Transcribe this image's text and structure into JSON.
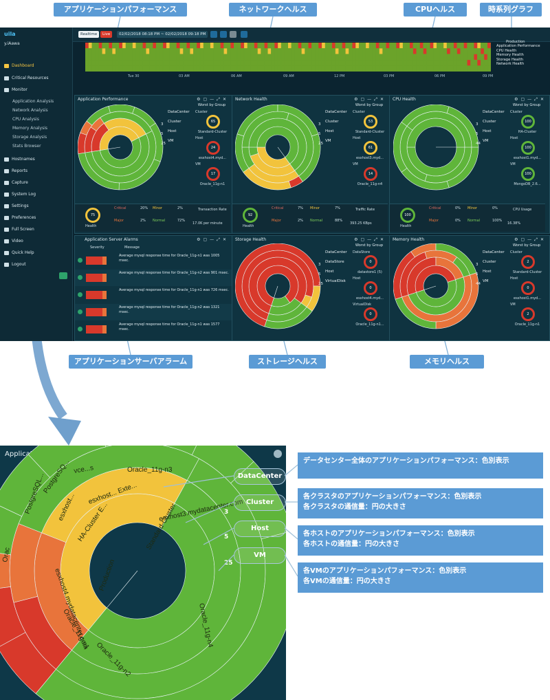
{
  "callouts": {
    "app_perf": "アプリケーションパフォーマンス",
    "network": "ネットワークヘルス",
    "cpu": "CPUヘルス",
    "timeseries": "時系列グラフ",
    "app_alarm": "アプリケーションサーバアラーム",
    "storage": "ストレージヘルス",
    "memory": "メモリヘルス"
  },
  "sidebar": {
    "brand": "uila",
    "user": "y.iAawa",
    "items": [
      "Dashboard",
      "Critical Resources",
      "Monitor",
      "Application Analysis",
      "Network Analysis",
      "CPU Analysis",
      "Memory Analysis",
      "Storage Analysis",
      "Stats Browser",
      "Hostnames",
      "Reports",
      "Capture",
      "System Log",
      "Settings",
      "Preferences",
      "Full Screen",
      "Video",
      "Quick Help",
      "Logout"
    ]
  },
  "topbar": {
    "tab_realtime": "Realtime",
    "tab_live": "Live",
    "range": "02/02/2018 08:18 PM ~ 02/02/2018 09:18 PM"
  },
  "timeline": {
    "ticks": [
      "Tue 30",
      "03 AM",
      "06 AM",
      "09 AM",
      "12 PM",
      "03 PM",
      "06 PM",
      "09 PM"
    ],
    "legend_title": "Production",
    "legend_items": [
      "Application Performance",
      "CPU Health",
      "Memory Health",
      "Storage Health",
      "Network Health"
    ]
  },
  "colors": {
    "green": "#5fb53a",
    "yellow": "#f2c33c",
    "red": "#d8392b",
    "orange": "#e8743b",
    "bg": "#0b2430"
  },
  "rings": {
    "datacenter": "DataCenter",
    "cluster": "Cluster",
    "host": "Host",
    "vm": "VM",
    "datastore": "DataStore",
    "vdisk": "VirtualDisk"
  },
  "ring_counts": {
    "cluster": "3",
    "host": "5",
    "vm": "25",
    "vm_cpu": "44",
    "vm_mem": "44",
    "vm_net": "25",
    "vm_sto": "25"
  },
  "panels": {
    "app": {
      "title": "Application Performance",
      "worst_title": "Worst by Group",
      "groups": [
        {
          "name": "Cluster",
          "value": "65",
          "label": "Standard-Cluster"
        },
        {
          "name": "Host",
          "value": "24",
          "label": "esxhost4.myd..."
        },
        {
          "name": "VM",
          "value": "17",
          "label": "Oracle_11g-n1"
        }
      ],
      "health": "75",
      "health_label": "Health",
      "stats": {
        "critical": "Critical",
        "critical_pct": "20%",
        "minor": "Minor",
        "minor_pct": "2%",
        "major": "Major",
        "major_pct": "2%",
        "normal": "Normal",
        "normal_pct": "72%"
      },
      "metric_name": "Transaction Rate",
      "metric_value": "17.0K per minute"
    },
    "network": {
      "title": "Network Health",
      "worst_title": "Worst by Group",
      "groups": [
        {
          "name": "Cluster",
          "value": "53",
          "label": "Standard-Cluster"
        },
        {
          "name": "Host",
          "value": "61",
          "label": "esxhost3.myd..."
        },
        {
          "name": "VM",
          "value": "14",
          "label": "Oracle_11g-n4"
        }
      ],
      "health": "92",
      "health_label": "Health",
      "stats": {
        "critical": "Critical",
        "critical_pct": "7%",
        "minor": "Minor",
        "minor_pct": "7%",
        "major": "Major",
        "major_pct": "2%",
        "normal": "Normal",
        "normal_pct": "88%"
      },
      "metric_name": "Traffic Rate",
      "metric_value": "393.25 KBps"
    },
    "cpu": {
      "title": "CPU Health",
      "worst_title": "Worst by Group",
      "groups": [
        {
          "name": "Cluster",
          "value": "100",
          "label": "HA-Cluster"
        },
        {
          "name": "Host",
          "value": "100",
          "label": "esxhost1.myd..."
        },
        {
          "name": "VM",
          "value": "100",
          "label": "MongoDB_2.6..."
        }
      ],
      "health": "100",
      "health_label": "Health",
      "stats": {
        "critical": "Critical",
        "critical_pct": "0%",
        "minor": "Minor",
        "minor_pct": "0%",
        "major": "Major",
        "major_pct": "0%",
        "normal": "Normal",
        "normal_pct": "100%"
      },
      "metric_name": "CPU Usage",
      "metric_value": "16.38%"
    },
    "alarm": {
      "title": "Application Server Alarms",
      "col_severity": "Severity",
      "col_message": "Message",
      "rows": [
        "Average mysql response time for Oracle_11g-n1 was 1005 msec.",
        "Average mysql response time for Oracle_11g-n2 was 901 msec.",
        "Average mysql response time for Oracle_11g-n1 was 726 msec.",
        "Average mysql response time for Oracle_11g-n2 was 1321 msec.",
        "Average mysql response time for Oracle_11g-n1 was 1577 msec."
      ]
    },
    "storage": {
      "title": "Storage Health",
      "worst_title": "Worst by Group",
      "groups": [
        {
          "name": "DataStore",
          "value": "0",
          "label": "datastore1 (5)"
        },
        {
          "name": "Host",
          "value": "0",
          "label": "esxhost4.myd..."
        },
        {
          "name": "VirtualDisk",
          "value": "0",
          "label": "Oracle_11g-n1..."
        }
      ]
    },
    "memory": {
      "title": "Memory Health",
      "worst_title": "Worst by Group",
      "groups": [
        {
          "name": "Cluster",
          "value": "2",
          "label": "Standard-Cluster"
        },
        {
          "name": "Host",
          "value": "0",
          "label": "esxhost1.myd..."
        },
        {
          "name": "VM",
          "value": "2",
          "label": "Oracle_11g-n1"
        }
      ]
    }
  },
  "zoom": {
    "title": "Application Performance",
    "labels": {
      "datacenter": "DataCenter",
      "cluster": "Cluster",
      "host": "Host",
      "vm": "VM"
    },
    "counts": {
      "cluster": "3",
      "host": "5",
      "vm": "25"
    },
    "segment_labels": [
      "Production",
      "Standard-Cluster",
      "HA-Cluster E...",
      "esxhost3.mydatacenter.com",
      "esxhost...",
      "esxhost... Exte...",
      "PostgreSQL...",
      "PostgreSQ...",
      "vce...s",
      "Oracle_11g-n3",
      "Oracle_11g-n4",
      "Oracle_11g-n1",
      "esxhost4.mydatacenter.com",
      "Oracle_11g-n2",
      "Orac"
    ]
  },
  "descriptions": [
    "データセンター全体のアプリケーションパフォーマンス：色別表示",
    "各クラスタのアプリケーションパフォーマンス：色別表示",
    "各クラスタの通信量：円の大きさ",
    "各ホストのアプリケーションパフォーマンス：色別表示",
    "各ホストの通信量：円の大きさ",
    "各VMのアプリケーションパフォーマンス：色別表示",
    "各VMの通信量：円の大きさ"
  ]
}
